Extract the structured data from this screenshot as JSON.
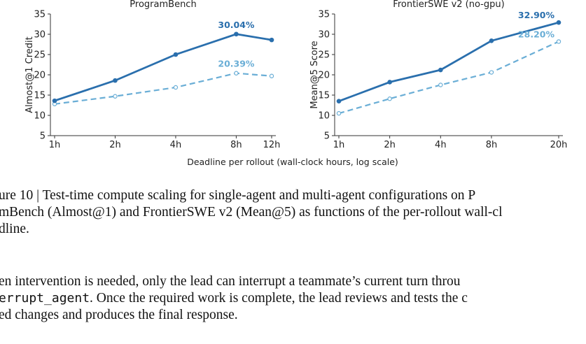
{
  "xlabel_shared": "Deadline per rollout (wall-clock hours, log scale)",
  "chart_data": [
    {
      "type": "line",
      "title": "ProgramBench",
      "ylabel": "Almost@1 Credit",
      "x": [
        "1h",
        "2h",
        "4h",
        "8h",
        "12h"
      ],
      "x_hours": [
        1,
        2,
        4,
        8,
        12
      ],
      "log_x": true,
      "ylim": [
        5,
        35
      ],
      "yticks": [
        5,
        10,
        15,
        20,
        25,
        30,
        35
      ],
      "series": [
        {
          "values": [
            13.6,
            18.6,
            25.0,
            30.04,
            28.6
          ],
          "color": "#2a6fad",
          "style": "solid"
        },
        {
          "values": [
            12.8,
            14.7,
            16.9,
            20.39,
            19.7
          ],
          "color": "#6aaed6",
          "style": "dashed"
        }
      ],
      "annotations": [
        {
          "text": "30.04%",
          "series": 0,
          "x": "8h",
          "color": "#2a6fad"
        },
        {
          "text": "20.39%",
          "series": 1,
          "x": "8h",
          "color": "#6aaed6"
        }
      ]
    },
    {
      "type": "line",
      "title": "FrontierSWE v2 (no-gpu)",
      "ylabel": "Mean@5 Score",
      "x": [
        "1h",
        "2h",
        "4h",
        "8h",
        "20h"
      ],
      "x_hours": [
        1,
        2,
        4,
        8,
        20
      ],
      "log_x": true,
      "ylim": [
        5,
        35
      ],
      "yticks": [
        5,
        10,
        15,
        20,
        25,
        30,
        35
      ],
      "series": [
        {
          "values": [
            13.5,
            18.2,
            21.2,
            28.4,
            32.9
          ],
          "color": "#2a6fad",
          "style": "solid"
        },
        {
          "values": [
            10.5,
            14.1,
            17.5,
            20.6,
            28.2
          ],
          "color": "#6aaed6",
          "style": "dashed"
        }
      ],
      "annotations": [
        {
          "text": "32.90%",
          "series": 0,
          "x": "20h",
          "color": "#2a6fad"
        },
        {
          "text": "28.20%",
          "series": 1,
          "x": "20h",
          "color": "#6aaed6"
        }
      ]
    }
  ],
  "caption": {
    "line1": "ure 10 | Test-time compute scaling for single-agent and multi-agent configurations on P",
    "line2": "mBench (Almost@1) and FrontierSWE v2 (Mean@5) as functions of the per-rollout wall-cl",
    "line3": "dline."
  },
  "paragraph": {
    "line1": "en intervention is needed, only the lead can interrupt a teammate’s current turn throu",
    "line2_code": "errupt_agent",
    "line2_rest": ". Once the required work is complete, the lead reviews and tests the c",
    "line3": "ed changes and produces the final response."
  }
}
